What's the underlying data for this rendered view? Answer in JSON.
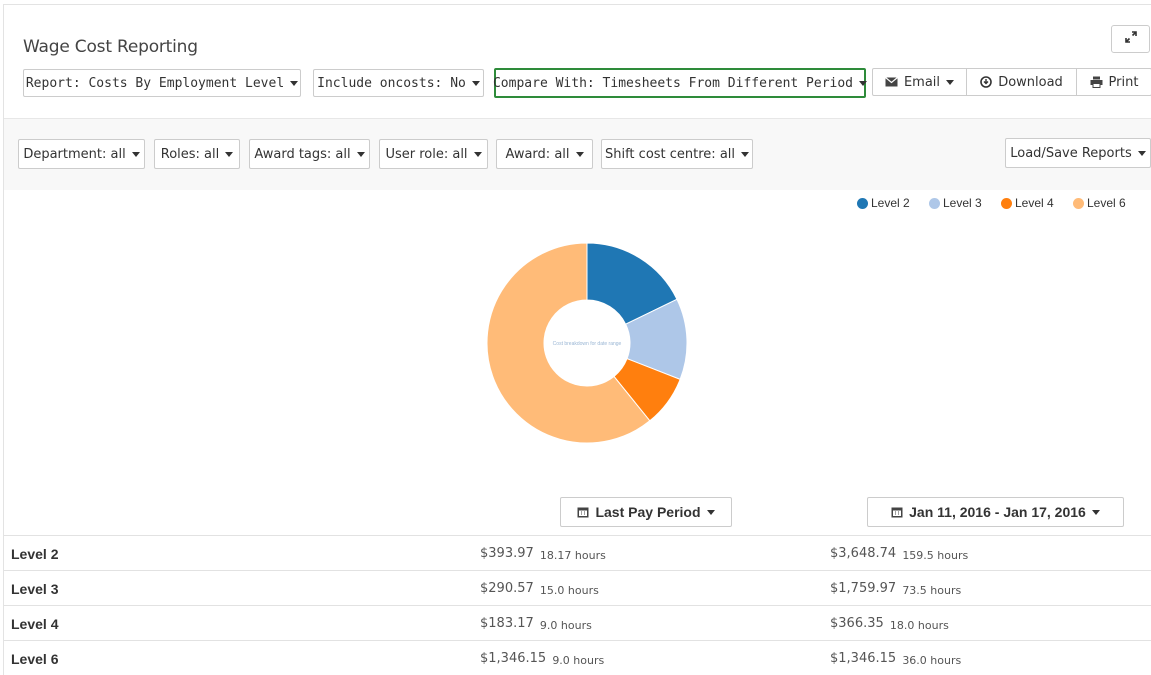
{
  "header": {
    "title": "Wage Cost Reporting"
  },
  "toolbar": {
    "report_label": "Report: Costs By Employment Level",
    "oncosts_label": "Include oncosts: No",
    "compare_label": "Compare With: Timesheets From Different Period",
    "email_label": "Email",
    "download_label": "Download",
    "print_label": "Print"
  },
  "filters": {
    "department": "Department: all",
    "roles": "Roles: all",
    "award_tags": "Award tags: all",
    "user_role": "User role: all",
    "award": "Award: all",
    "shift_cost_centre": "Shift cost centre: all",
    "load_save": "Load/Save Reports"
  },
  "chart_data": {
    "type": "pie",
    "categories": [
      "Level 2",
      "Level 3",
      "Level 4",
      "Level 6"
    ],
    "values": [
      393.97,
      290.57,
      183.17,
      1346.15
    ],
    "colors": [
      "#1f77b4",
      "#aec7e8",
      "#ff7f0e",
      "#ffbb78"
    ],
    "center_text": "Cost breakdown for date range",
    "legend_position": "top-right"
  },
  "periods": {
    "left": "Last Pay Period",
    "right": "Jan 11, 2016 - Jan 17, 2016"
  },
  "rows": [
    {
      "label": "Level 2",
      "cost1": "$393.97",
      "hours1": "18.17 hours",
      "cost2": "$3,648.74",
      "hours2": "159.5 hours"
    },
    {
      "label": "Level 3",
      "cost1": "$290.57",
      "hours1": "15.0 hours",
      "cost2": "$1,759.97",
      "hours2": "73.5 hours"
    },
    {
      "label": "Level 4",
      "cost1": "$183.17",
      "hours1": "9.0 hours",
      "cost2": "$366.35",
      "hours2": "18.0 hours"
    },
    {
      "label": "Level 6",
      "cost1": "$1,346.15",
      "hours1": "9.0 hours",
      "cost2": "$1,346.15",
      "hours2": "36.0 hours"
    }
  ]
}
